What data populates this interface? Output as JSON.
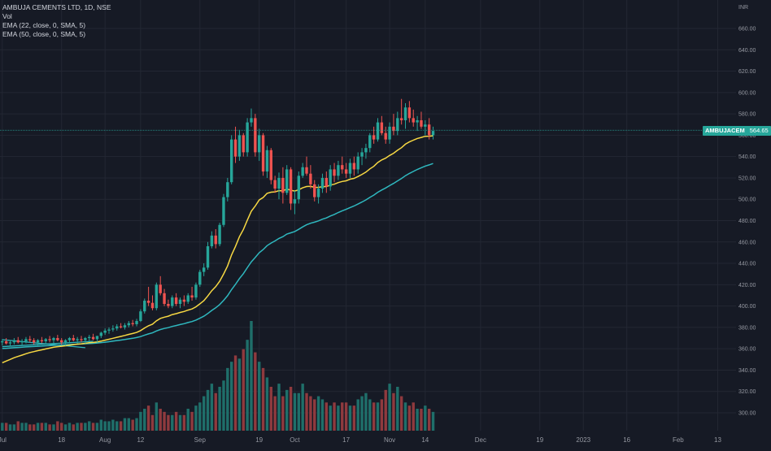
{
  "legend": {
    "symbol_line": "AMBUJA CEMENTS LTD, 1D, NSE",
    "vol": "Vol",
    "ema22": "EMA (22, close, 0, SMA, 5)",
    "ema50": "EMA (50, close, 0, SMA, 5)"
  },
  "price_tag": {
    "ticker": "AMBUJACEM",
    "value": "564.65"
  },
  "colors": {
    "background": "#161a25",
    "grid": "#232733",
    "up": "#26a69a",
    "down": "#ef5350",
    "vol_up": "#1f6f6a",
    "vol_down": "#8f3a3e",
    "ema22": "#f7d843",
    "ema50": "#2fb8bf",
    "trendline": "#2fb8bf",
    "axis_text": "#9598a1",
    "price_line": "#26a69a"
  },
  "chart_data": {
    "type": "candlestick",
    "currency_label": "INR",
    "y_ticks": [
      300,
      320,
      340,
      360,
      380,
      400,
      420,
      440,
      460,
      480,
      500,
      520,
      540,
      560,
      580,
      600,
      620,
      640,
      660
    ],
    "ylim": [
      290,
      670
    ],
    "x_ticks": [
      {
        "label": "Jul",
        "bar": 0
      },
      {
        "label": "18",
        "bar": 15
      },
      {
        "label": "Aug",
        "bar": 26
      },
      {
        "label": "12",
        "bar": 35
      },
      {
        "label": "Sep",
        "bar": 50
      },
      {
        "label": "19",
        "bar": 65
      },
      {
        "label": "Oct",
        "bar": 74
      },
      {
        "label": "17",
        "bar": 87
      },
      {
        "label": "Nov",
        "bar": 98
      },
      {
        "label": "14",
        "bar": 107
      },
      {
        "label": "Dec",
        "bar": 121
      },
      {
        "label": "19",
        "bar": 136
      },
      {
        "label": "2023",
        "bar": 147
      },
      {
        "label": "16",
        "bar": 158
      },
      {
        "label": "Feb",
        "bar": 171
      },
      {
        "label": "13",
        "bar": 181
      }
    ],
    "last_price": 564.65,
    "ohlc": [
      [
        366,
        369,
        363,
        367
      ],
      [
        367,
        370,
        364,
        365
      ],
      [
        365,
        368,
        362,
        366
      ],
      [
        366,
        370,
        364,
        368
      ],
      [
        368,
        371,
        365,
        366
      ],
      [
        366,
        369,
        363,
        367
      ],
      [
        367,
        371,
        365,
        369
      ],
      [
        369,
        372,
        366,
        368
      ],
      [
        368,
        370,
        364,
        366
      ],
      [
        366,
        369,
        363,
        368
      ],
      [
        368,
        371,
        365,
        367
      ],
      [
        367,
        370,
        364,
        369
      ],
      [
        369,
        372,
        366,
        368
      ],
      [
        368,
        371,
        365,
        370
      ],
      [
        370,
        373,
        367,
        368
      ],
      [
        368,
        370,
        364,
        366
      ],
      [
        366,
        369,
        363,
        368
      ],
      [
        368,
        371,
        365,
        370
      ],
      [
        370,
        373,
        367,
        368
      ],
      [
        368,
        371,
        365,
        369
      ],
      [
        369,
        372,
        366,
        368
      ],
      [
        368,
        371,
        365,
        370
      ],
      [
        370,
        373,
        367,
        371
      ],
      [
        371,
        374,
        368,
        369
      ],
      [
        369,
        372,
        366,
        372
      ],
      [
        372,
        376,
        370,
        375
      ],
      [
        375,
        379,
        373,
        377
      ],
      [
        377,
        380,
        374,
        378
      ],
      [
        378,
        382,
        376,
        379
      ],
      [
        379,
        383,
        377,
        381
      ],
      [
        381,
        384,
        379,
        380
      ],
      [
        380,
        384,
        378,
        382
      ],
      [
        382,
        386,
        380,
        384
      ],
      [
        384,
        387,
        381,
        383
      ],
      [
        383,
        388,
        381,
        386
      ],
      [
        386,
        397,
        385,
        395
      ],
      [
        395,
        407,
        393,
        405
      ],
      [
        405,
        418,
        400,
        403
      ],
      [
        403,
        410,
        396,
        398
      ],
      [
        398,
        422,
        396,
        420
      ],
      [
        420,
        428,
        410,
        412
      ],
      [
        412,
        416,
        400,
        402
      ],
      [
        402,
        406,
        398,
        400
      ],
      [
        400,
        410,
        398,
        408
      ],
      [
        408,
        412,
        400,
        402
      ],
      [
        402,
        408,
        398,
        406
      ],
      [
        406,
        410,
        400,
        404
      ],
      [
        404,
        412,
        402,
        410
      ],
      [
        410,
        418,
        405,
        408
      ],
      [
        408,
        422,
        406,
        420
      ],
      [
        420,
        434,
        418,
        432
      ],
      [
        432,
        440,
        428,
        436
      ],
      [
        436,
        460,
        434,
        456
      ],
      [
        456,
        470,
        454,
        466
      ],
      [
        466,
        472,
        454,
        458
      ],
      [
        458,
        478,
        456,
        476
      ],
      [
        476,
        505,
        474,
        502
      ],
      [
        502,
        520,
        498,
        516
      ],
      [
        516,
        560,
        514,
        556
      ],
      [
        556,
        568,
        534,
        540
      ],
      [
        540,
        565,
        536,
        560
      ],
      [
        560,
        562,
        540,
        544
      ],
      [
        544,
        576,
        540,
        572
      ],
      [
        572,
        585,
        568,
        576
      ],
      [
        576,
        580,
        540,
        544
      ],
      [
        544,
        566,
        536,
        560
      ],
      [
        560,
        562,
        522,
        526
      ],
      [
        526,
        550,
        520,
        546
      ],
      [
        546,
        548,
        514,
        518
      ],
      [
        518,
        522,
        506,
        510
      ],
      [
        510,
        525,
        500,
        520
      ],
      [
        520,
        530,
        496,
        506
      ],
      [
        506,
        532,
        504,
        528
      ],
      [
        528,
        530,
        490,
        496
      ],
      [
        496,
        508,
        486,
        500
      ],
      [
        500,
        526,
        496,
        522
      ],
      [
        522,
        534,
        520,
        530
      ],
      [
        530,
        540,
        522,
        524
      ],
      [
        524,
        532,
        510,
        514
      ],
      [
        514,
        518,
        498,
        502
      ],
      [
        502,
        514,
        496,
        510
      ],
      [
        510,
        524,
        506,
        520
      ],
      [
        520,
        526,
        506,
        512
      ],
      [
        512,
        532,
        508,
        528
      ],
      [
        528,
        534,
        516,
        522
      ],
      [
        522,
        536,
        518,
        532
      ],
      [
        532,
        540,
        524,
        528
      ],
      [
        528,
        534,
        520,
        524
      ],
      [
        524,
        538,
        520,
        534
      ],
      [
        534,
        540,
        522,
        528
      ],
      [
        528,
        544,
        524,
        540
      ],
      [
        540,
        548,
        532,
        544
      ],
      [
        544,
        552,
        538,
        548
      ],
      [
        548,
        562,
        544,
        560
      ],
      [
        560,
        568,
        552,
        556
      ],
      [
        556,
        576,
        554,
        572
      ],
      [
        572,
        578,
        560,
        562
      ],
      [
        562,
        568,
        552,
        556
      ],
      [
        556,
        572,
        552,
        568
      ],
      [
        568,
        580,
        560,
        564
      ],
      [
        564,
        582,
        560,
        576
      ],
      [
        576,
        594,
        570,
        574
      ],
      [
        574,
        590,
        566,
        586
      ],
      [
        586,
        592,
        572,
        576
      ],
      [
        576,
        584,
        568,
        572
      ],
      [
        572,
        578,
        564,
        574
      ],
      [
        574,
        582,
        566,
        568
      ],
      [
        568,
        574,
        560,
        570
      ],
      [
        570,
        576,
        556,
        560
      ],
      [
        560,
        568,
        556,
        564
      ]
    ],
    "volume": [
      5,
      5,
      4,
      4,
      6,
      5,
      5,
      4,
      4,
      5,
      5,
      5,
      4,
      4,
      6,
      5,
      4,
      5,
      4,
      5,
      5,
      5,
      6,
      5,
      5,
      7,
      6,
      6,
      7,
      6,
      6,
      8,
      8,
      7,
      8,
      12,
      14,
      16,
      10,
      18,
      14,
      12,
      10,
      10,
      12,
      10,
      10,
      14,
      12,
      16,
      18,
      22,
      26,
      30,
      24,
      28,
      32,
      40,
      44,
      48,
      46,
      52,
      58,
      70,
      50,
      44,
      40,
      34,
      28,
      22,
      30,
      22,
      26,
      28,
      24,
      24,
      30,
      24,
      22,
      20,
      22,
      20,
      18,
      16,
      18,
      16,
      18,
      18,
      16,
      16,
      20,
      22,
      24,
      20,
      18,
      18,
      20,
      26,
      30,
      24,
      28,
      22,
      18,
      16,
      18,
      14,
      14,
      16,
      14,
      12
    ],
    "volume_max": 70,
    "trendlines": [
      {
        "from": [
          0,
          368.5
        ],
        "to": [
          21,
          361
        ]
      },
      {
        "from": [
          0,
          362
        ],
        "to": [
          23,
          367
        ]
      }
    ],
    "ema_seed": {
      "ema22": 345,
      "ema50": 360
    }
  }
}
